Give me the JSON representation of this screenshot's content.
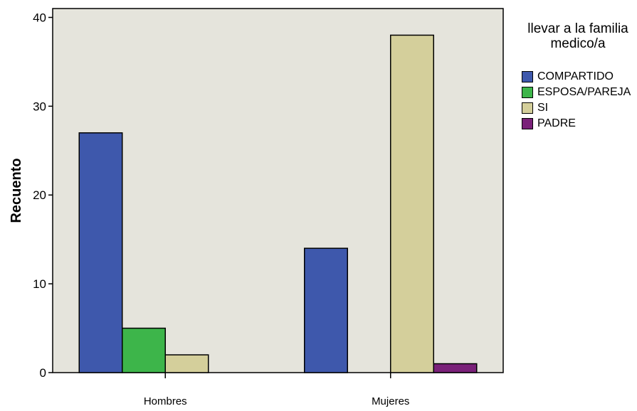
{
  "chart_data": {
    "type": "bar",
    "categories": [
      "Hombres",
      "Mujeres"
    ],
    "series": [
      {
        "name": "COMPARTIDO",
        "color": "#3e58ac",
        "values": [
          27,
          14
        ]
      },
      {
        "name": "ESPOSA/PAREJA",
        "color": "#3db54a",
        "values": [
          5,
          0
        ]
      },
      {
        "name": "SI",
        "color": "#d4cf9b",
        "values": [
          2,
          38
        ]
      },
      {
        "name": "PADRE",
        "color": "#7a2179",
        "values": [
          0,
          1
        ]
      }
    ],
    "ylabel": "Recuento",
    "xlabel": "",
    "ylim": [
      0,
      41
    ],
    "yticks": [
      0,
      10,
      20,
      30,
      40
    ],
    "legend_title": [
      "llevar a la familia",
      "medico/a"
    ],
    "legend_position": "right",
    "plot_background": "#e5e4dc",
    "grid": false
  }
}
